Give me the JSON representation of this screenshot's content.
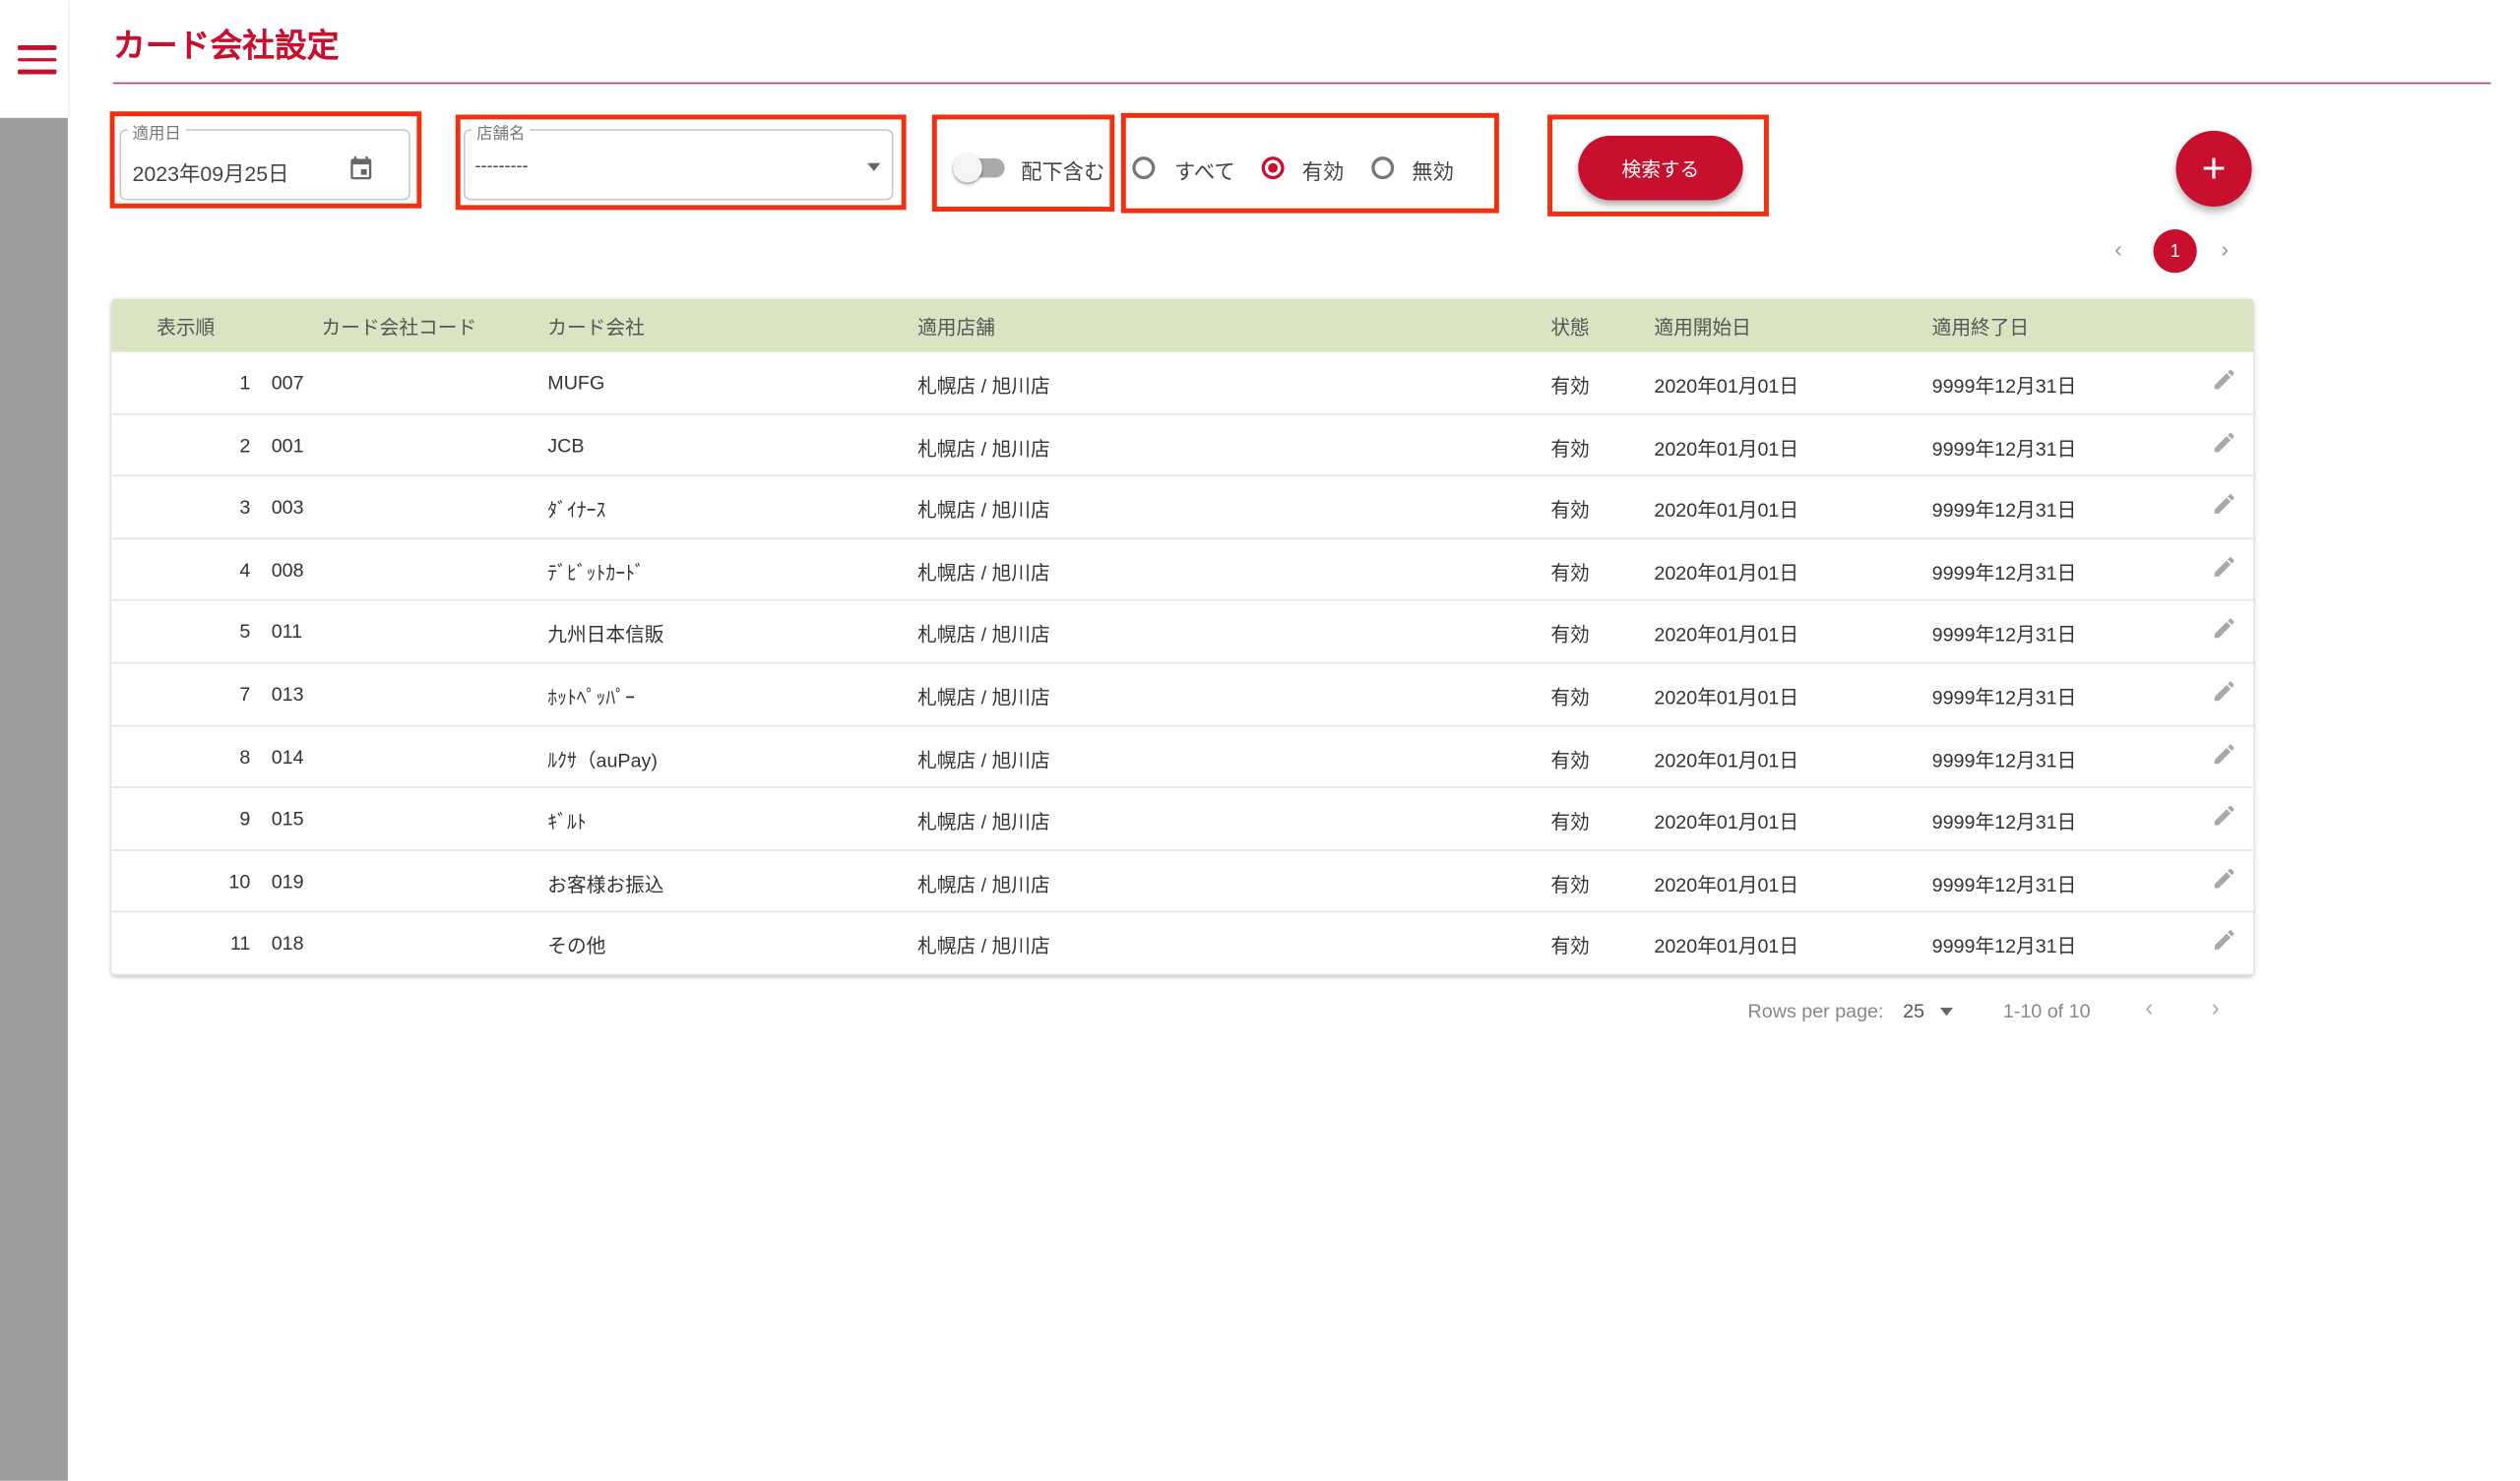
{
  "header": {
    "title": "カード会社設定",
    "menu_icon": "hamburger-icon"
  },
  "filters": {
    "date": {
      "label": "適用日",
      "value": "2023年09月25日",
      "icon": "calendar-icon"
    },
    "store": {
      "label": "店舗名",
      "value": "---------"
    },
    "include_sub": {
      "label": "配下含む",
      "checked": false
    },
    "status": {
      "options": [
        "すべて",
        "有効",
        "無効"
      ],
      "selected": "有効"
    },
    "search_label": "検索する",
    "add_label": "+"
  },
  "top_pagination": {
    "prev": "‹",
    "current": "1",
    "next": "›"
  },
  "table": {
    "columns": [
      "表示順",
      "カード会社コード",
      "カード会社",
      "適用店舗",
      "状態",
      "適用開始日",
      "適用終了日"
    ],
    "rows": [
      [
        "1",
        "007",
        "MUFG",
        "札幌店 / 旭川店",
        "有効",
        "2020年01月01日",
        "9999年12月31日"
      ],
      [
        "2",
        "001",
        "JCB",
        "札幌店 / 旭川店",
        "有効",
        "2020年01月01日",
        "9999年12月31日"
      ],
      [
        "3",
        "003",
        "ﾀﾞｲﾅｰｽ",
        "札幌店 / 旭川店",
        "有効",
        "2020年01月01日",
        "9999年12月31日"
      ],
      [
        "4",
        "008",
        "ﾃﾞﾋﾞｯﾄｶｰﾄﾞ",
        "札幌店 / 旭川店",
        "有効",
        "2020年01月01日",
        "9999年12月31日"
      ],
      [
        "5",
        "011",
        "九州日本信販",
        "札幌店 / 旭川店",
        "有効",
        "2020年01月01日",
        "9999年12月31日"
      ],
      [
        "7",
        "013",
        "ﾎｯﾄﾍﾟｯﾊﾟｰ",
        "札幌店 / 旭川店",
        "有効",
        "2020年01月01日",
        "9999年12月31日"
      ],
      [
        "8",
        "014",
        "ﾙｸｻ（auPay)",
        "札幌店 / 旭川店",
        "有効",
        "2020年01月01日",
        "9999年12月31日"
      ],
      [
        "9",
        "015",
        "ｷﾞﾙﾄ",
        "札幌店 / 旭川店",
        "有効",
        "2020年01月01日",
        "9999年12月31日"
      ],
      [
        "10",
        "019",
        "お客様お振込",
        "札幌店 / 旭川店",
        "有効",
        "2020年01月01日",
        "9999年12月31日"
      ],
      [
        "11",
        "018",
        "その他",
        "札幌店 / 旭川店",
        "有効",
        "2020年01月01日",
        "9999年12月31日"
      ]
    ],
    "row_action_icon": "pencil-icon"
  },
  "footer": {
    "rows_per_page_label": "Rows per page:",
    "rows_per_page": "25",
    "range": "1-10 of 10",
    "prev": "‹",
    "next": "›"
  },
  "colors": {
    "accent": "#c8102e",
    "table_header": "#d8e4c2",
    "highlight_box": "#f03010"
  }
}
